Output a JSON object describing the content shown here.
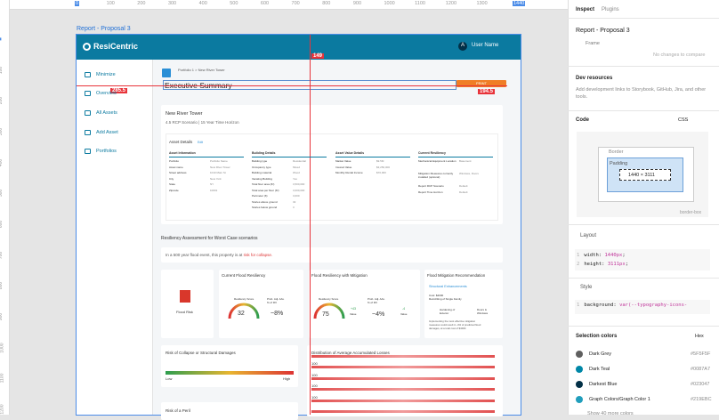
{
  "rulers": {
    "top": [
      0,
      100,
      200,
      300,
      400,
      500,
      600,
      700,
      800,
      900,
      1000,
      1100,
      1200,
      1300,
      1440
    ],
    "left": [
      0,
      100,
      200,
      300,
      400,
      500,
      600,
      700,
      800,
      900,
      1000,
      1100,
      1200
    ]
  },
  "frame_label": "Report - Proposal 3",
  "measurements": {
    "top": "149",
    "left": "285.5",
    "right": "194.5"
  },
  "app": {
    "brand": "ResiCentric",
    "avatar": "A",
    "user": "User Name",
    "nav": [
      "Minimize",
      "Overview",
      "All Assets",
      "Add Asset",
      "Portfolios"
    ],
    "breadcrumb": [
      "Portfolio 1",
      "New River Tower"
    ],
    "title": "Executive Summary",
    "print": "PRINT",
    "asset": {
      "name": "New River Tower",
      "subtitle": "4.5 RCP Scenario | 15 Year Time Horizon",
      "details_title": "Asset Details",
      "edit": "Edit",
      "columns": [
        {
          "title": "Asset Information",
          "rows": [
            [
              "Portfolio",
              "Portfolio Name"
            ],
            [
              "Asset name",
              "New River Tower"
            ],
            [
              "Street address",
              "1010 Main St"
            ],
            [
              "City",
              "New York"
            ],
            [
              "State",
              "NY"
            ],
            [
              "Zipcode",
              "10001"
            ]
          ]
        },
        {
          "title": "Building Details",
          "rows": [
            [
              "Building type",
              "Residential"
            ],
            [
              "Occupancy type",
              "Mixed"
            ],
            [
              "Building material",
              "Wood"
            ],
            [
              "Vacating Building",
              "Yes"
            ],
            [
              "Total floor area (ft²)",
              "3,500,000"
            ],
            [
              "Total area per floor (ft²)",
              "3,000,000"
            ],
            [
              "Perimeter (ft)",
              "3,000"
            ],
            [
              "Stories above ground",
              "32"
            ],
            [
              "Stories below ground",
              "3"
            ]
          ]
        },
        {
          "title": "Asset Value Details",
          "rows": [
            [
              "Market Value",
              "$9.5M"
            ],
            [
              "Insured Value",
              "$3,250,000"
            ],
            [
              "Monthly Rental Income",
              "$70,000"
            ]
          ]
        },
        {
          "title": "Current Resiliency",
          "rows": [
            [
              "Mechanical Equipment Location",
              "Basement"
            ],
            [
              "Mitigation Measures currently installed (optional)",
              "Windows, Doors"
            ],
            [
              "Report RCP Scenario",
              "Default"
            ],
            [
              "Report Time Horizon",
              "Default"
            ]
          ]
        }
      ]
    },
    "resiliency": {
      "heading": "Resiliency Assessment for Worst Case scenarios",
      "banner": "In a 500 year flood event, this property is at",
      "banner_risk": "risk for collapse.",
      "flood_risk": "Flood Risk",
      "current": {
        "title": "Current Flood Resiliency",
        "score_label": "Resiliency Score",
        "score": "32",
        "aal_label": "Prob. Adj. AAL % of RV",
        "aal": "~8%"
      },
      "mitigation": {
        "title": "Flood Resiliency with Mitigation",
        "score_label": "Resiliency Score",
        "score": "75",
        "aal_label": "Prob. Adj. AAL % of RV",
        "aal": "~4%",
        "up": "+43",
        "up_label": "Value",
        "down": "-4",
        "down_label": "Value"
      },
      "recommendation": {
        "title": "Flood Mitigation Recommendation",
        "subtitle": "Structural Enhancements",
        "cost": "Cost: $4000",
        "desc": "Retrofitting of Single Family",
        "items": [
          "Hardening of Exterior",
          "Doors & Windows"
        ],
        "note": "Implementing the most effective mitigation measures could result in -4% of predicted flood damages, at a total cost of $4000."
      }
    },
    "collapse": {
      "title": "Risk of Collapse or Structural Damages",
      "low": "Low",
      "high": "High"
    },
    "losses": {
      "title": "Distribution of Average Accumulated Losses",
      "labels": [
        "100",
        "100",
        "100",
        "100"
      ]
    },
    "peril": {
      "title": "Risk of a Peril"
    }
  },
  "inspect": {
    "tabs": [
      "Inspect",
      "Plugins"
    ],
    "name": "Report - Proposal 3",
    "kind": "Frame",
    "changes": "No changes to compare",
    "dev_title": "Dev resources",
    "dev_desc": "Add development links to Storybook, GitHub, Jira, and other tools.",
    "code": "Code",
    "lang": "CSS",
    "border": "Border",
    "padding": "Padding",
    "size": "1440 × 3111",
    "box": "border-box",
    "layout": "Layout",
    "layout_lines": [
      [
        "1",
        "width: ",
        "1440px",
        ";"
      ],
      [
        "2",
        "height: ",
        "3111px",
        ";"
      ]
    ],
    "style": "Style",
    "style_lines": [
      [
        "1",
        "background: ",
        "var(--typography-icons-"
      ]
    ],
    "colors_title": "Selection colors",
    "hex": "Hex",
    "colors": [
      {
        "name": "Dark Grey",
        "hex": "#5F5F5F"
      },
      {
        "name": "Dark Teal",
        "hex": "#0087A7"
      },
      {
        "name": "Darkest Blue",
        "hex": "#023047"
      },
      {
        "name": "Graph Colors/Graph Color 1",
        "hex": "#219EBC"
      }
    ],
    "more": "Show 40 more colors"
  }
}
